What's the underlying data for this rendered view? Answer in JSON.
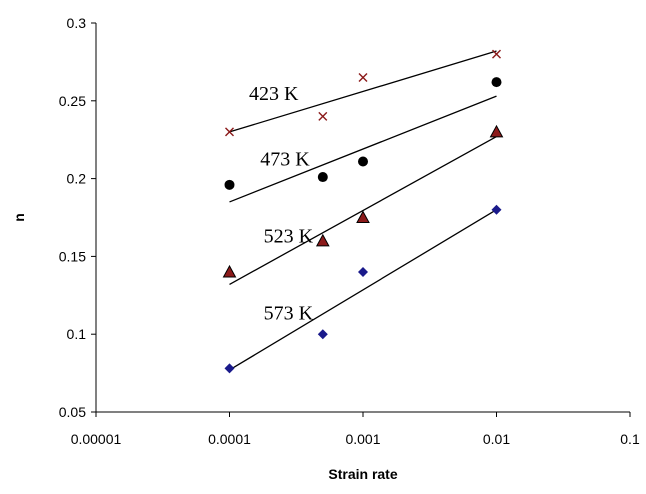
{
  "chart_data": {
    "type": "scatter",
    "title": "",
    "xlabel": "Strain rate",
    "ylabel": "n",
    "x_scale": "log",
    "xlim": [
      1e-05,
      0.1
    ],
    "ylim": [
      0.05,
      0.3
    ],
    "x_tick_labels": [
      "0.00001",
      "0.0001",
      "0.001",
      "0.01",
      "0.1"
    ],
    "y_tick_labels": [
      "0.05",
      "0.1",
      "0.15",
      "0.2",
      "0.25",
      "0.3"
    ],
    "grid": false,
    "legend": "none",
    "series": [
      {
        "name": "423 K",
        "marker": "x",
        "color": "#8b1a1a",
        "points": [
          {
            "x": 0.0001,
            "y": 0.23
          },
          {
            "x": 0.0005,
            "y": 0.24
          },
          {
            "x": 0.001,
            "y": 0.265
          },
          {
            "x": 0.01,
            "y": 0.28
          }
        ],
        "fit_line": [
          {
            "x": 0.0001,
            "y": 0.23
          },
          {
            "x": 0.01,
            "y": 0.282
          }
        ]
      },
      {
        "name": "473 K",
        "marker": "circle",
        "color": "#000000",
        "points": [
          {
            "x": 0.0001,
            "y": 0.196
          },
          {
            "x": 0.0005,
            "y": 0.201
          },
          {
            "x": 0.001,
            "y": 0.211
          },
          {
            "x": 0.01,
            "y": 0.262
          }
        ],
        "fit_line": [
          {
            "x": 0.0001,
            "y": 0.185
          },
          {
            "x": 0.01,
            "y": 0.253
          }
        ]
      },
      {
        "name": "523 K",
        "marker": "triangle",
        "color": "#8b1a1a",
        "points": [
          {
            "x": 0.0001,
            "y": 0.14
          },
          {
            "x": 0.0005,
            "y": 0.16
          },
          {
            "x": 0.001,
            "y": 0.175
          },
          {
            "x": 0.01,
            "y": 0.23
          }
        ],
        "fit_line": [
          {
            "x": 0.0001,
            "y": 0.132
          },
          {
            "x": 0.01,
            "y": 0.227
          }
        ]
      },
      {
        "name": "573 K",
        "marker": "diamond",
        "color": "#1a1a8b",
        "points": [
          {
            "x": 0.0001,
            "y": 0.078
          },
          {
            "x": 0.0005,
            "y": 0.1
          },
          {
            "x": 0.001,
            "y": 0.14
          },
          {
            "x": 0.01,
            "y": 0.18
          }
        ],
        "fit_line": [
          {
            "x": 0.0001,
            "y": 0.077
          },
          {
            "x": 0.01,
            "y": 0.18
          }
        ]
      }
    ]
  }
}
